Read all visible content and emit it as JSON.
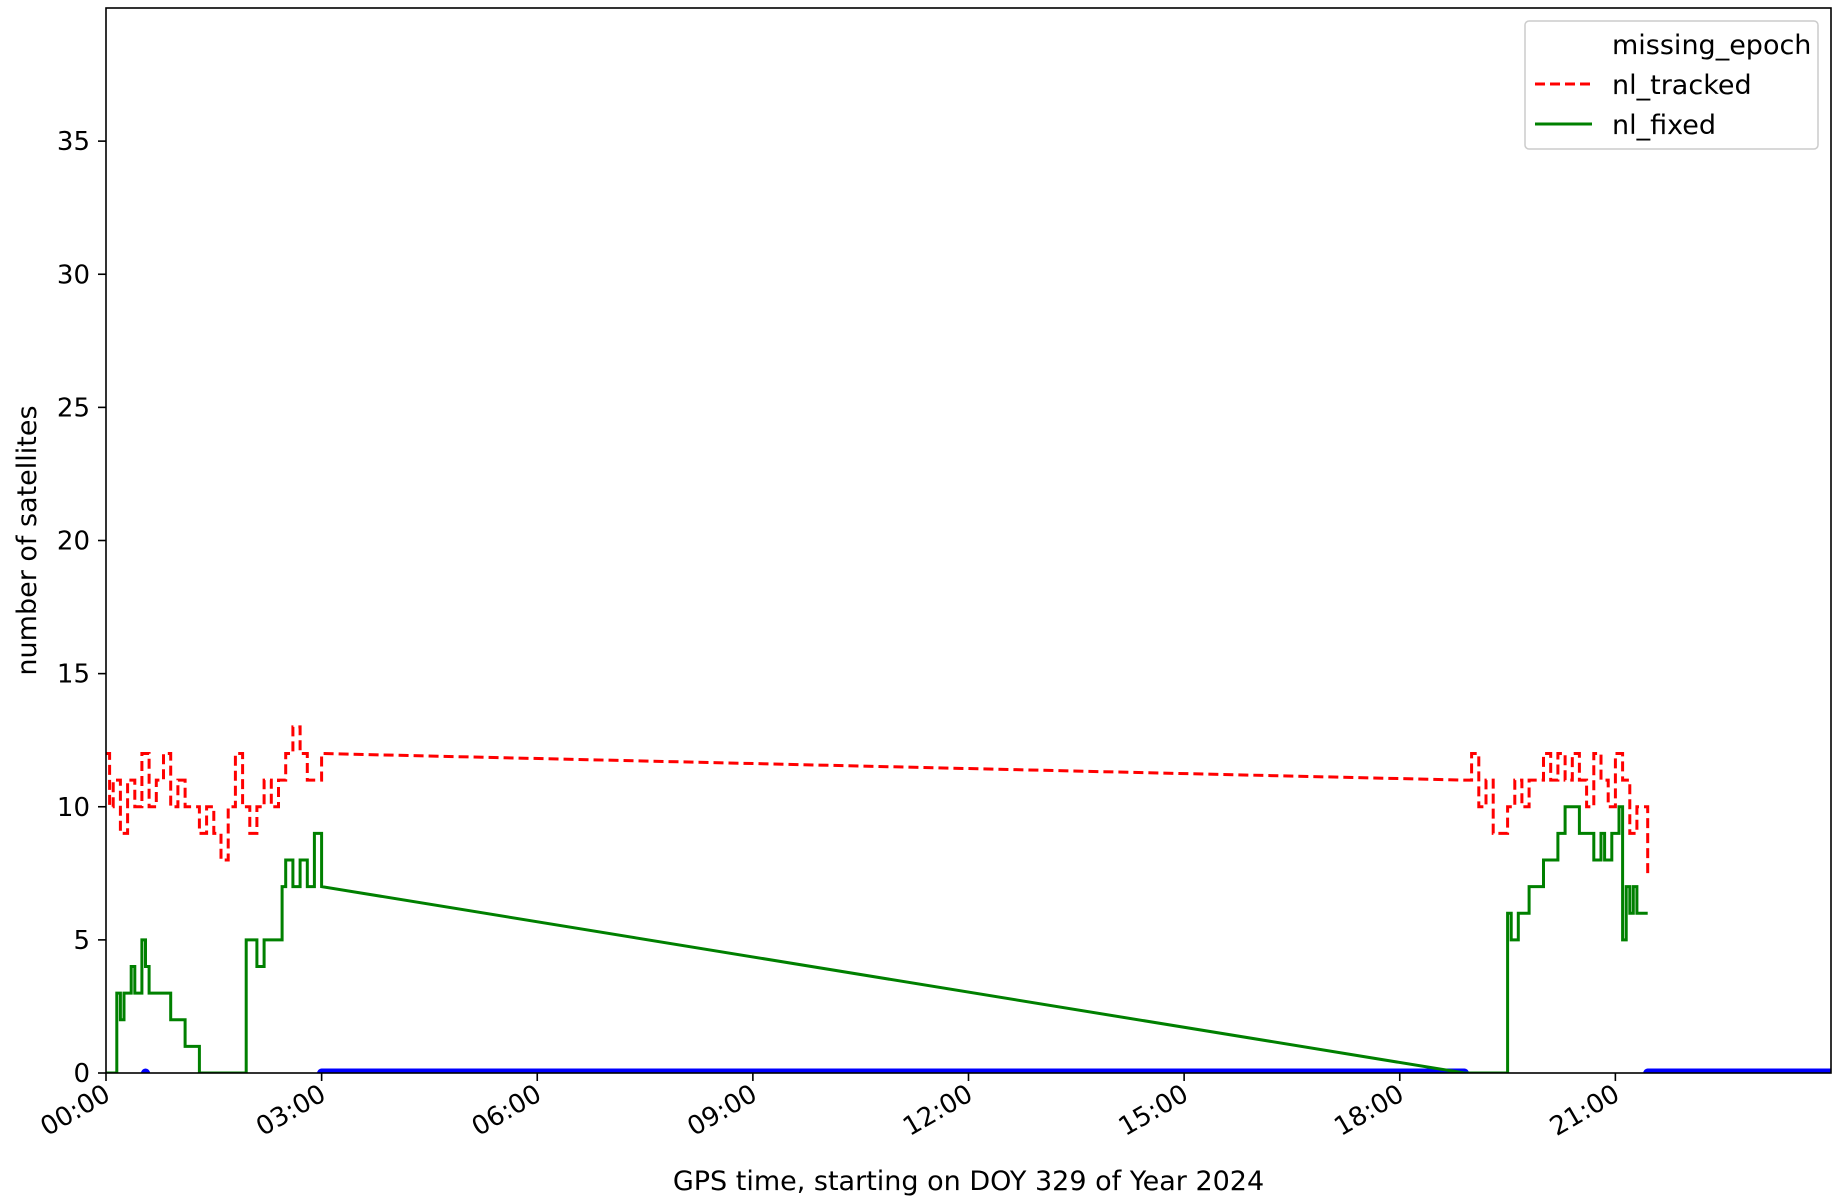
{
  "chart_data": {
    "type": "line",
    "title": "",
    "xlabel": "GPS time, starting on DOY 329 of Year 2024",
    "ylabel": "number of satellites",
    "xlim": [
      0,
      24
    ],
    "ylim": [
      0,
      40
    ],
    "x_tick_values": [
      0,
      3,
      6,
      9,
      12,
      15,
      18,
      21
    ],
    "x_tick_labels": [
      "00:00",
      "03:00",
      "06:00",
      "09:00",
      "12:00",
      "15:00",
      "18:00",
      "21:00"
    ],
    "y_ticks": [
      0,
      5,
      10,
      15,
      20,
      25,
      30,
      35
    ],
    "grid": false,
    "legend_position": "top-right",
    "series": [
      {
        "name": "missing_epoch",
        "style": "dots",
        "color": "#0000ff",
        "points": [
          [
            0.55,
            0
          ]
        ],
        "segments": [
          [
            3.0,
            18.9
          ],
          [
            21.45,
            24.0
          ]
        ],
        "y": 0
      },
      {
        "name": "nl_tracked",
        "style": "dashed",
        "color": "#ff0000",
        "x": [
          0.0,
          0.05,
          0.1,
          0.2,
          0.3,
          0.4,
          0.5,
          0.6,
          0.7,
          0.8,
          0.9,
          1.0,
          1.1,
          1.2,
          1.3,
          1.4,
          1.5,
          1.6,
          1.7,
          1.8,
          1.9,
          2.0,
          2.1,
          2.2,
          2.3,
          2.4,
          2.5,
          2.6,
          2.7,
          2.8,
          2.9,
          3.0,
          18.9,
          19.0,
          19.1,
          19.2,
          19.3,
          19.4,
          19.5,
          19.6,
          19.7,
          19.8,
          19.9,
          20.0,
          20.1,
          20.2,
          20.3,
          20.4,
          20.5,
          20.6,
          20.7,
          20.8,
          20.9,
          21.0,
          21.1,
          21.2,
          21.3,
          21.45
        ],
        "y": [
          12,
          10,
          11,
          9,
          11,
          10,
          12,
          10,
          11,
          12,
          10,
          11,
          10,
          10,
          9,
          10,
          9,
          8,
          10,
          12,
          10,
          9,
          10,
          11,
          10,
          11,
          12,
          13,
          12,
          11,
          11,
          12,
          11,
          12,
          10,
          11,
          9,
          9,
          10,
          11,
          10,
          11,
          11,
          12,
          11,
          12,
          11,
          12,
          11,
          10,
          12,
          11,
          10,
          12,
          11,
          9,
          10,
          7.5
        ]
      },
      {
        "name": "nl_fixed",
        "style": "solid",
        "color": "#008000",
        "x": [
          0.0,
          0.1,
          0.15,
          0.2,
          0.25,
          0.3,
          0.35,
          0.4,
          0.45,
          0.5,
          0.55,
          0.6,
          0.7,
          0.8,
          0.9,
          1.0,
          1.1,
          1.2,
          1.3,
          1.4,
          1.6,
          1.65,
          1.7,
          1.9,
          1.95,
          2.05,
          2.1,
          2.2,
          2.35,
          2.45,
          2.5,
          2.6,
          2.7,
          2.8,
          2.9,
          3.0,
          18.9,
          19.45,
          19.5,
          19.55,
          19.65,
          19.7,
          19.8,
          19.9,
          20.0,
          20.2,
          20.3,
          20.5,
          20.6,
          20.7,
          20.8,
          20.85,
          20.95,
          21.0,
          21.05,
          21.1,
          21.15,
          21.2,
          21.25,
          21.3,
          21.45
        ],
        "y": [
          0,
          0,
          3,
          2,
          3,
          3,
          4,
          3,
          3,
          5,
          4,
          3,
          3,
          3,
          2,
          2,
          1,
          1,
          0,
          0,
          0,
          0,
          0,
          0,
          5,
          5,
          4,
          5,
          5,
          7,
          8,
          7,
          8,
          7,
          9,
          7,
          0,
          0,
          6,
          5,
          6,
          6,
          7,
          7,
          8,
          9,
          10,
          9,
          9,
          8,
          9,
          8,
          9,
          9,
          10,
          5,
          7,
          6,
          7,
          6,
          6
        ]
      }
    ]
  }
}
